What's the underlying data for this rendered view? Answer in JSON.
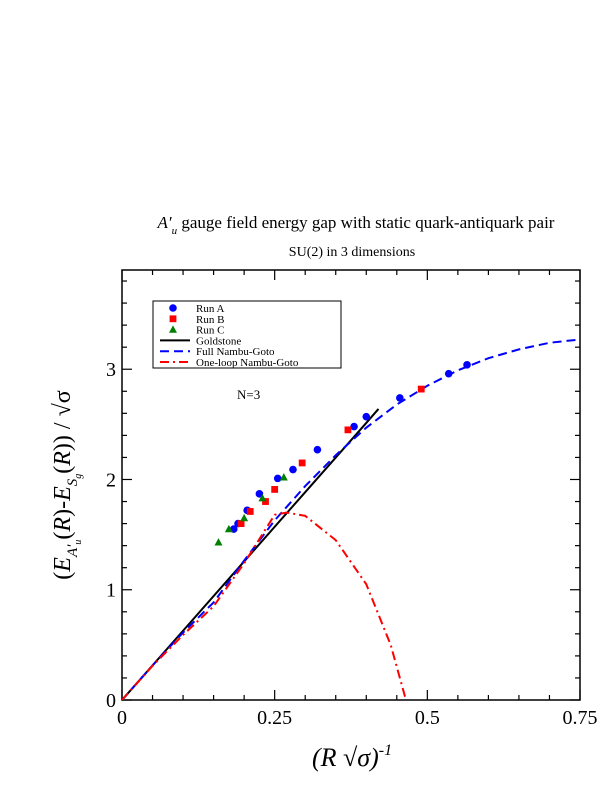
{
  "title_symbol": "A′",
  "title_sub": "u",
  "title_text": " gauge field energy gap with static quark-antiquark pair",
  "subtitle": "SU(2) in 3 dimensions",
  "annotation": "N=3",
  "colors": {
    "run_a": "#0000ff",
    "run_b": "#ff0000",
    "run_c": "#008000",
    "goldstone": "#000000",
    "full_ng": "#0000ff",
    "one_loop_ng": "#ff0000"
  },
  "chart_data": {
    "type": "scatter",
    "title": "A′u gauge field energy gap with static quark-antiquark pair",
    "subtitle": "SU(2) in 3 dimensions",
    "xlabel": "(R √σ)^-1",
    "ylabel": "(E_A′u(R) - E_Sg(R)) / √σ",
    "xlim": [
      0,
      0.75
    ],
    "ylim": [
      0,
      3.9
    ],
    "x_ticks": [
      "0",
      "0.25",
      "0.5",
      "0.75"
    ],
    "y_ticks": [
      "0",
      "1",
      "2",
      "3"
    ],
    "grid": false,
    "legend_position": "top-left",
    "legend": [
      "Run A",
      "Run B",
      "Run C",
      "Goldstone",
      "Full Nambu-Goto",
      "One-loop Nambu-Goto"
    ],
    "series": [
      {
        "name": "Run A",
        "marker": "circle",
        "points": [
          [
            0.183,
            1.55
          ],
          [
            0.19,
            1.6
          ],
          [
            0.205,
            1.72
          ],
          [
            0.225,
            1.87
          ],
          [
            0.255,
            2.01
          ],
          [
            0.28,
            2.09
          ],
          [
            0.32,
            2.27
          ],
          [
            0.38,
            2.48
          ],
          [
            0.4,
            2.57
          ],
          [
            0.455,
            2.74
          ],
          [
            0.535,
            2.96
          ],
          [
            0.565,
            3.04
          ]
        ]
      },
      {
        "name": "Run B",
        "marker": "square",
        "points": [
          [
            0.195,
            1.6
          ],
          [
            0.21,
            1.71
          ],
          [
            0.235,
            1.8
          ],
          [
            0.25,
            1.91
          ],
          [
            0.295,
            2.15
          ],
          [
            0.37,
            2.45
          ],
          [
            0.49,
            2.82
          ]
        ]
      },
      {
        "name": "Run C",
        "marker": "triangle",
        "points": [
          [
            0.158,
            1.43
          ],
          [
            0.175,
            1.55
          ],
          [
            0.2,
            1.65
          ],
          [
            0.23,
            1.83
          ],
          [
            0.265,
            2.02
          ]
        ]
      },
      {
        "name": "Goldstone",
        "style": "solid",
        "curve": "y = 2πx",
        "points": [
          [
            0,
            0
          ],
          [
            0.1,
            0.628
          ],
          [
            0.2,
            1.257
          ],
          [
            0.3,
            1.885
          ],
          [
            0.4,
            2.513
          ],
          [
            0.42,
            2.64
          ]
        ]
      },
      {
        "name": "Full Nambu-Goto",
        "style": "dashed",
        "points": [
          [
            0,
            0
          ],
          [
            0.05,
            0.313
          ],
          [
            0.1,
            0.612
          ],
          [
            0.15,
            0.885
          ],
          [
            0.2,
            1.264
          ],
          [
            0.25,
            1.629
          ],
          [
            0.3,
            1.94
          ],
          [
            0.35,
            2.22
          ],
          [
            0.4,
            2.47
          ],
          [
            0.45,
            2.68
          ],
          [
            0.5,
            2.85
          ],
          [
            0.55,
            2.99
          ],
          [
            0.6,
            3.1
          ],
          [
            0.65,
            3.18
          ],
          [
            0.7,
            3.24
          ],
          [
            0.75,
            3.27
          ]
        ]
      },
      {
        "name": "One-loop Nambu-Goto",
        "style": "dash-dot",
        "points": [
          [
            0,
            0
          ],
          [
            0.05,
            0.31
          ],
          [
            0.1,
            0.59
          ],
          [
            0.15,
            0.85
          ],
          [
            0.2,
            1.24
          ],
          [
            0.25,
            1.68
          ],
          [
            0.27,
            1.7
          ],
          [
            0.3,
            1.67
          ],
          [
            0.35,
            1.45
          ],
          [
            0.4,
            1.05
          ],
          [
            0.44,
            0.5
          ],
          [
            0.465,
            0.0
          ]
        ]
      }
    ]
  }
}
